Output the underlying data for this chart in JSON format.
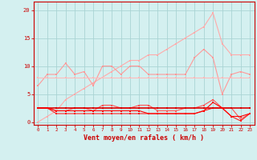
{
  "x": [
    0,
    1,
    2,
    3,
    4,
    5,
    6,
    7,
    8,
    9,
    10,
    11,
    12,
    13,
    14,
    15,
    16,
    17,
    18,
    19,
    20,
    21,
    22,
    23
  ],
  "series": [
    {
      "color": "#ffaaaa",
      "linewidth": 0.8,
      "markersize": 2.0,
      "values": [
        0,
        1,
        2,
        4,
        5,
        6,
        7,
        8,
        9,
        10,
        11,
        11,
        12,
        12,
        13,
        14,
        15,
        16,
        17,
        19.5,
        14,
        12,
        12,
        12
      ]
    },
    {
      "color": "#ff9999",
      "linewidth": 0.8,
      "markersize": 2.0,
      "values": [
        6.5,
        8.5,
        8.5,
        10.5,
        8.5,
        9.0,
        6.5,
        10.0,
        10.0,
        8.5,
        10.0,
        10.0,
        8.5,
        8.5,
        8.5,
        8.5,
        8.5,
        11.5,
        13.0,
        11.5,
        5.0,
        8.5,
        9.0,
        8.5
      ]
    },
    {
      "color": "#ffbbbb",
      "linewidth": 0.8,
      "markersize": 2.0,
      "values": [
        8,
        8,
        8,
        8,
        8,
        8,
        8,
        8,
        8,
        8,
        8,
        8,
        8,
        8,
        8,
        8,
        8,
        8,
        8,
        8,
        8,
        8,
        8,
        8
      ]
    },
    {
      "color": "#ff5555",
      "linewidth": 0.8,
      "markersize": 2.0,
      "values": [
        2.5,
        2.5,
        2.0,
        2.0,
        2.5,
        2.5,
        2.0,
        3.0,
        3.0,
        2.5,
        2.5,
        3.0,
        3.0,
        2.0,
        2.0,
        2.0,
        2.5,
        2.5,
        3.0,
        4.0,
        2.5,
        2.5,
        0.5,
        1.5
      ]
    },
    {
      "color": "#ff2222",
      "linewidth": 0.8,
      "markersize": 2.0,
      "values": [
        2.5,
        2.5,
        1.5,
        1.5,
        1.5,
        1.5,
        1.5,
        1.5,
        1.5,
        1.5,
        1.5,
        1.5,
        1.5,
        1.5,
        1.5,
        1.5,
        1.5,
        1.5,
        2.0,
        2.5,
        2.5,
        1.0,
        0.2,
        1.5
      ]
    },
    {
      "color": "#dd0000",
      "linewidth": 1.2,
      "markersize": 2.0,
      "values": [
        2.5,
        2.5,
        2.5,
        2.5,
        2.5,
        2.5,
        2.5,
        2.5,
        2.5,
        2.5,
        2.5,
        2.5,
        2.5,
        2.5,
        2.5,
        2.5,
        2.5,
        2.5,
        2.5,
        2.5,
        2.5,
        2.5,
        2.5,
        2.5
      ]
    },
    {
      "color": "#ff0000",
      "linewidth": 0.8,
      "markersize": 2.0,
      "values": [
        2.5,
        2.5,
        2.0,
        2.0,
        2.0,
        2.0,
        2.0,
        2.0,
        2.0,
        2.0,
        2.0,
        2.0,
        1.5,
        1.5,
        1.5,
        1.5,
        1.5,
        1.5,
        2.0,
        3.5,
        2.5,
        1.0,
        1.0,
        1.5
      ]
    }
  ],
  "xlabel": "Vent moyen/en rafales ( km/h )",
  "ylabel_ticks": [
    0,
    5,
    10,
    15,
    20
  ],
  "xticks": [
    0,
    1,
    2,
    3,
    4,
    5,
    6,
    7,
    8,
    9,
    10,
    11,
    12,
    13,
    14,
    15,
    16,
    17,
    18,
    19,
    20,
    21,
    22,
    23
  ],
  "ylim": [
    -0.5,
    21.5
  ],
  "xlim": [
    -0.5,
    23.5
  ],
  "bg_color": "#d4f0f0",
  "grid_color": "#aad4d4",
  "axis_color": "#cc0000",
  "tick_color": "#cc0000",
  "label_color": "#cc0000"
}
